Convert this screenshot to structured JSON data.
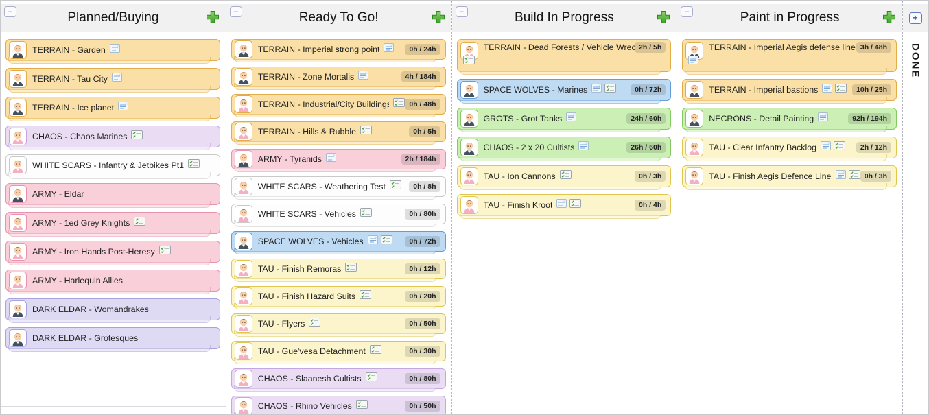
{
  "board": {
    "columns": [
      {
        "title": "Planned/Buying",
        "collapse_label": "−",
        "cards": [
          {
            "label": "TERRAIN - Garden",
            "color": "orange",
            "avatar": "user-suit",
            "icons": [
              "note"
            ]
          },
          {
            "label": "TERRAIN - Tau City",
            "color": "orange",
            "avatar": "user-suit",
            "icons": [
              "note"
            ]
          },
          {
            "label": "TERRAIN - Ice planet",
            "color": "orange",
            "avatar": "user-suit",
            "icons": [
              "note"
            ]
          },
          {
            "label": "CHAOS - Chaos Marines",
            "color": "purple",
            "avatar": "user-pink",
            "icons": [
              "checklist"
            ]
          },
          {
            "label": "WHITE SCARS - Infantry & Jetbikes Pt1",
            "color": "white",
            "avatar": "user-pink",
            "icons": [
              "checklist"
            ]
          },
          {
            "label": "ARMY - Eldar",
            "color": "pink",
            "avatar": "user-suit",
            "icons": []
          },
          {
            "label": "ARMY - 1ed Grey Knights",
            "color": "pink",
            "avatar": "user-pink",
            "icons": [
              "checklist"
            ]
          },
          {
            "label": "ARMY - Iron Hands Post-Heresy",
            "color": "pink",
            "avatar": "user-pink",
            "icons": [
              "checklist"
            ]
          },
          {
            "label": "ARMY - Harlequin Allies",
            "color": "pink",
            "avatar": "user-pink",
            "icons": []
          },
          {
            "label": "DARK ELDAR - Womandrakes",
            "color": "lavender",
            "avatar": "user-suit",
            "icons": []
          },
          {
            "label": "DARK ELDAR - Grotesques",
            "color": "lavender",
            "avatar": "user-suit",
            "icons": []
          }
        ]
      },
      {
        "title": "Ready To Go!",
        "collapse_label": "−",
        "cards": [
          {
            "label": "TERRAIN - Imperial strong point",
            "color": "orange",
            "avatar": "user-suit",
            "icons": [
              "note"
            ],
            "badge": "0h / 24h"
          },
          {
            "label": "TERRAIN - Zone Mortalis",
            "color": "orange",
            "avatar": "user-suit",
            "icons": [
              "note"
            ],
            "badge": "4h / 184h"
          },
          {
            "label": "TERRAIN - Industrial/City Buildings",
            "color": "orange",
            "avatar": "user-pink",
            "icons": [
              "checklist"
            ],
            "badge": "0h / 48h"
          },
          {
            "label": "TERRAIN - Hills & Rubble",
            "color": "orange",
            "avatar": "user-pink",
            "icons": [
              "checklist"
            ],
            "badge": "0h / 5h"
          },
          {
            "label": "ARMY - Tyranids",
            "color": "pink",
            "avatar": "user-suit",
            "icons": [
              "note"
            ],
            "badge": "2h / 184h"
          },
          {
            "label": "WHITE SCARS - Weathering Test",
            "color": "white",
            "avatar": "user-pink",
            "icons": [
              "checklist"
            ],
            "badge": "0h / 8h"
          },
          {
            "label": "WHITE SCARS - Vehicles",
            "color": "white",
            "avatar": "user-pink",
            "icons": [
              "checklist"
            ],
            "badge": "0h / 80h"
          },
          {
            "label": "SPACE WOLVES - Vehicles",
            "color": "blue",
            "avatar": "user-suit",
            "icons": [
              "note",
              "checklist"
            ],
            "badge": "0h / 72h"
          },
          {
            "label": "TAU - Finish Remoras",
            "color": "yellow",
            "avatar": "user-pink",
            "icons": [
              "checklist"
            ],
            "badge": "0h / 12h"
          },
          {
            "label": "TAU - Finish Hazard Suits",
            "color": "yellow",
            "avatar": "user-pink",
            "icons": [
              "checklist"
            ],
            "badge": "0h / 20h"
          },
          {
            "label": "TAU - Flyers",
            "color": "yellow",
            "avatar": "user-pink",
            "icons": [
              "checklist"
            ],
            "badge": "0h / 50h"
          },
          {
            "label": "TAU - Gue'vesa Detachment",
            "color": "yellow",
            "avatar": "user-pink",
            "icons": [
              "checklist"
            ],
            "badge": "0h / 30h"
          },
          {
            "label": "CHAOS - Slaanesh Cultists",
            "color": "purple",
            "avatar": "user-pink",
            "icons": [
              "checklist"
            ],
            "badge": "0h / 80h"
          },
          {
            "label": "CHAOS - Rhino Vehicles",
            "color": "purple",
            "avatar": "user-pink",
            "icons": [
              "checklist"
            ],
            "badge": "0h / 50h"
          }
        ]
      },
      {
        "title": "Build In Progress",
        "collapse_label": "−",
        "cards": [
          {
            "label": "TERRAIN - Dead Forests / Vehicle Wrecks",
            "color": "orange",
            "avatar": "user-pink",
            "icons": [
              "checklist"
            ],
            "badge": "2h / 5h",
            "two_line": true
          },
          {
            "label": "SPACE WOLVES - Marines",
            "color": "blue",
            "avatar": "user-suit",
            "icons": [
              "note",
              "checklist"
            ],
            "badge": "0h / 72h"
          },
          {
            "label": "GROTS - Grot Tanks",
            "color": "green",
            "avatar": "user-suit",
            "icons": [
              "note"
            ],
            "badge": "24h / 60h"
          },
          {
            "label": "CHAOS - 2 x 20 Cultists",
            "color": "green",
            "avatar": "user-suit",
            "icons": [
              "note"
            ],
            "badge": "26h / 60h"
          },
          {
            "label": "TAU - Ion Cannons",
            "color": "yellow",
            "avatar": "user-pink",
            "icons": [
              "checklist"
            ],
            "badge": "0h / 3h"
          },
          {
            "label": "TAU - Finish Kroot",
            "color": "yellow",
            "avatar": "user-pink",
            "icons": [
              "note",
              "checklist"
            ],
            "badge": "0h / 4h"
          }
        ]
      },
      {
        "title": "Paint in Progress",
        "collapse_label": "−",
        "cards": [
          {
            "label": "TERRAIN - Imperial Aegis defense lines",
            "color": "orange",
            "avatar": "user-suit",
            "icons": [
              "note"
            ],
            "badge": "3h / 48h",
            "two_line": true
          },
          {
            "label": "TERRAIN - Imperial bastions",
            "color": "orange",
            "avatar": "user-suit",
            "icons": [
              "note",
              "checklist"
            ],
            "badge": "10h / 25h"
          },
          {
            "label": "NECRONS - Detail Painting",
            "color": "green",
            "avatar": "user-suit",
            "icons": [
              "note"
            ],
            "badge": "92h / 194h"
          },
          {
            "label": "TAU - Clear Infantry Backlog",
            "color": "yellow",
            "avatar": "user-pink",
            "icons": [
              "note",
              "checklist"
            ],
            "badge": "2h / 12h"
          },
          {
            "label": "TAU - Finish Aegis Defence Lines",
            "color": "yellow",
            "avatar": "user-pink",
            "icons": [
              "note",
              "checklist"
            ],
            "badge": "0h / 3h"
          }
        ]
      }
    ],
    "done_column": {
      "title": "DONE",
      "expand_label": "+"
    }
  },
  "palette": {
    "orange": {
      "bg": "#FAE0A6",
      "border": "#E2AC48"
    },
    "pink": {
      "bg": "#F9CFDA",
      "border": "#E795AE"
    },
    "purple": {
      "bg": "#E9DCF3",
      "border": "#C5A6DE"
    },
    "lavender": {
      "bg": "#DFDAF4",
      "border": "#A9A2DC"
    },
    "white": {
      "bg": "#FDFDFD",
      "border": "#C9C9C9"
    },
    "blue": {
      "bg": "#BFDBF4",
      "border": "#639CD6"
    },
    "yellow": {
      "bg": "#FCF5CB",
      "border": "#E0C64F"
    },
    "green": {
      "bg": "#CBEFB4",
      "border": "#84C964"
    }
  },
  "avatars": {
    "user-suit": {
      "hair": "#C0692A",
      "skin": "#F7CFA8",
      "shirt": "#44525F"
    },
    "user-pink": {
      "hair": "#4A392B",
      "skin": "#F7CFA8",
      "shirt": "#F4AFC0"
    }
  },
  "ui": {
    "add_plus_fill_top": "#8ED468",
    "add_plus_fill_bottom": "#3C9E2B",
    "add_plus_stroke": "#2F861F",
    "badge_bg": "rgba(0,0,0,0.12)",
    "header_bg": "#F1F1F2",
    "separator_style": "dashed"
  }
}
